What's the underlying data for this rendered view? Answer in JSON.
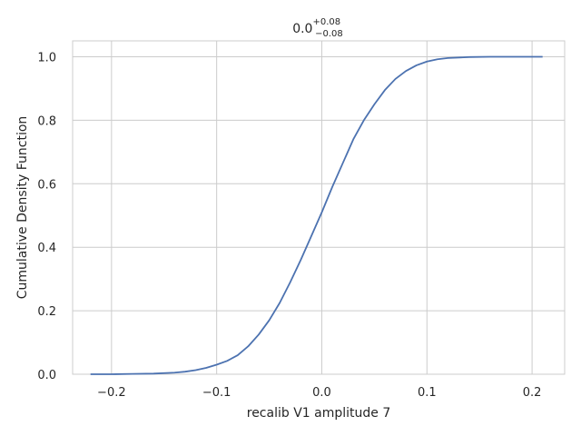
{
  "chart_data": {
    "type": "line",
    "title": {
      "base": "0.0",
      "upper": "+0.08",
      "lower": "−0.08"
    },
    "xlabel": "recalib V1 amplitude 7",
    "ylabel": "Cumulative Density Function",
    "xlim": [
      -0.237,
      0.231
    ],
    "ylim": [
      0,
      1.05
    ],
    "x_ticks": [
      -0.2,
      -0.1,
      0.0,
      0.1,
      0.2
    ],
    "x_tick_labels": [
      "−0.2",
      "−0.1",
      "0.0",
      "0.1",
      "0.2"
    ],
    "y_ticks": [
      0.0,
      0.2,
      0.4,
      0.6,
      0.8,
      1.0
    ],
    "y_tick_labels": [
      "0.0",
      "0.2",
      "0.4",
      "0.6",
      "0.8",
      "1.0"
    ],
    "grid": true,
    "series": [
      {
        "color": "#4c72b0",
        "x": [
          -0.22,
          -0.2,
          -0.18,
          -0.16,
          -0.14,
          -0.13,
          -0.12,
          -0.11,
          -0.1,
          -0.09,
          -0.08,
          -0.07,
          -0.06,
          -0.05,
          -0.04,
          -0.03,
          -0.02,
          -0.01,
          0.0,
          0.01,
          0.02,
          0.03,
          0.04,
          0.05,
          0.06,
          0.07,
          0.08,
          0.09,
          0.1,
          0.11,
          0.12,
          0.14,
          0.16,
          0.18,
          0.21
        ],
        "y": [
          0.0,
          0.0,
          0.001,
          0.002,
          0.005,
          0.008,
          0.013,
          0.02,
          0.03,
          0.042,
          0.06,
          0.088,
          0.125,
          0.17,
          0.225,
          0.29,
          0.36,
          0.435,
          0.51,
          0.59,
          0.665,
          0.74,
          0.8,
          0.85,
          0.895,
          0.93,
          0.955,
          0.973,
          0.985,
          0.992,
          0.996,
          0.999,
          1.0,
          1.0,
          1.0
        ]
      }
    ]
  }
}
